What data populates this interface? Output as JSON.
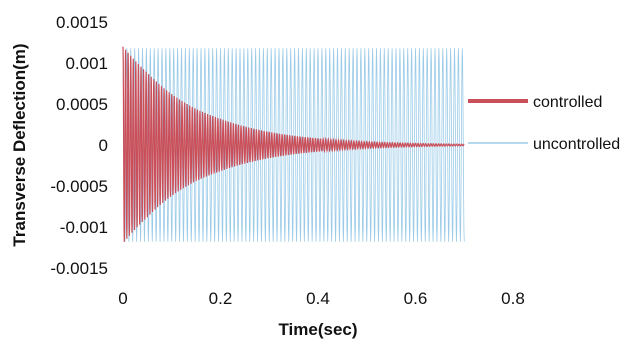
{
  "chart_data": {
    "type": "line",
    "title": "",
    "xlabel": "Time(sec)",
    "ylabel": "Transverse Deflection(m)",
    "xlim": [
      0,
      0.8
    ],
    "ylim": [
      -0.0015,
      0.0015
    ],
    "x_ticks": [
      "0",
      "0.2",
      "0.4",
      "0.6",
      "0.8"
    ],
    "y_ticks": [
      "0.0015",
      "0.001",
      "0.0005",
      "0",
      "-0.0005",
      "-0.001",
      "-0.0015"
    ],
    "legend_position": "right",
    "series": [
      {
        "name": "controlled",
        "color": "#c9505a",
        "description": "decaying oscillation",
        "x": [
          0,
          0.05,
          0.1,
          0.15,
          0.2,
          0.3,
          0.4,
          0.5,
          0.6,
          0.7
        ],
        "amplitude": [
          0.0012,
          0.00088,
          0.00062,
          0.00044,
          0.00032,
          0.00016,
          8e-05,
          4e-05,
          2e-05,
          1e-05
        ]
      },
      {
        "name": "uncontrolled",
        "color": "#9ccbe8",
        "description": "constant amplitude oscillation",
        "x": [
          0,
          0.7
        ],
        "amplitude": [
          0.00118,
          0.00118
        ]
      }
    ]
  }
}
